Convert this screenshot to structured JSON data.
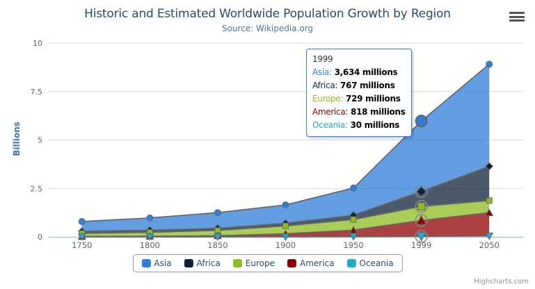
{
  "chart": {
    "title": "Historic and Estimated Worldwide Population Growth by Region",
    "subtitle": "Source: Wikipedia.org",
    "y_axis_title": "Billions",
    "credit": "Highcharts.com",
    "colors": {
      "title": "#274b6d",
      "subtitle": "#4d759e",
      "axis_labels": "#606060",
      "y_axis_title": "#4572a7",
      "grid_line": "#d8d8d8",
      "axis_line": "#c0d0e0",
      "series_outline": "#666666"
    }
  },
  "chart_data": {
    "type": "area",
    "stacking": "normal",
    "title": "Historic and Estimated Worldwide Population Growth by Region",
    "subtitle": "Source: Wikipedia.org",
    "xlabel": "",
    "ylabel": "Billions",
    "unit": "millions",
    "ylim": [
      0,
      10000
    ],
    "grid": true,
    "legend_position": "bottom",
    "categories": [
      "1750",
      "1800",
      "1850",
      "1900",
      "1950",
      "1999",
      "2050"
    ],
    "yticks": [
      {
        "value": 0,
        "label": "0"
      },
      {
        "value": 2500,
        "label": "2.5"
      },
      {
        "value": 5000,
        "label": "5"
      },
      {
        "value": 7500,
        "label": "7.5"
      },
      {
        "value": 10000,
        "label": "10"
      }
    ],
    "series": [
      {
        "name": "Asia",
        "color": "#2f7ed8",
        "marker": "circle",
        "values": [
          502,
          635,
          809,
          947,
          1402,
          3634,
          5268
        ]
      },
      {
        "name": "Africa",
        "color": "#0d233a",
        "marker": "diamond",
        "values": [
          106,
          107,
          111,
          133,
          221,
          767,
          1766
        ]
      },
      {
        "name": "Europe",
        "color": "#8bbc21",
        "marker": "square",
        "values": [
          163,
          203,
          276,
          408,
          547,
          729,
          628
        ]
      },
      {
        "name": "America",
        "color": "#910000",
        "marker": "triangle",
        "values": [
          18,
          31,
          54,
          156,
          339,
          818,
          1201
        ]
      },
      {
        "name": "Oceania",
        "color": "#1aadce",
        "marker": "triangle-down",
        "values": [
          2,
          2,
          2,
          6,
          13,
          30,
          46
        ]
      }
    ],
    "hover": {
      "category": "1999",
      "category_index": 5
    }
  },
  "tooltip": {
    "header": "1999",
    "border_color": "#2f7ed8",
    "rows": [
      {
        "name": "Asia",
        "value": "3,634 millions",
        "color": "#2f7ed8"
      },
      {
        "name": "Africa",
        "value": "767 millions",
        "color": "#0d233a"
      },
      {
        "name": "Europe",
        "value": "729 millions",
        "color": "#8bbc21"
      },
      {
        "name": "America",
        "value": "818 millions",
        "color": "#910000"
      },
      {
        "name": "Oceania",
        "value": "30 millions",
        "color": "#1aadce"
      }
    ]
  },
  "legend": {
    "items": [
      {
        "label": "Asia",
        "color": "#2f7ed8"
      },
      {
        "label": "Africa",
        "color": "#0d233a"
      },
      {
        "label": "Europe",
        "color": "#8bbc21"
      },
      {
        "label": "America",
        "color": "#910000"
      },
      {
        "label": "Oceania",
        "color": "#1aadce"
      }
    ]
  }
}
